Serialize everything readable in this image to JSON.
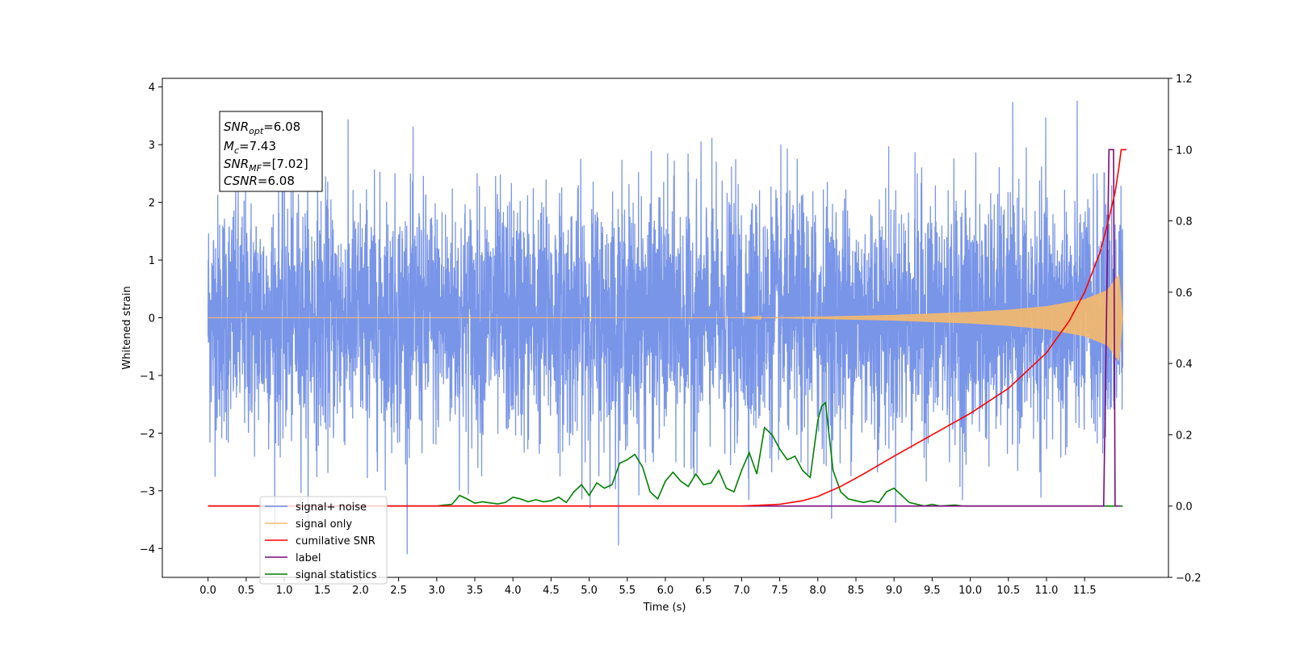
{
  "chart_data": {
    "type": "line",
    "xlabel": "Time (s)",
    "ylabel": "Whitened strain",
    "xlim": [
      -0.6,
      12.6
    ],
    "ylim": [
      -4.5,
      4.15
    ],
    "y2lim": [
      -0.2,
      1.2
    ],
    "x_ticks": [
      "0.0",
      "0.5",
      "1.0",
      "1.5",
      "2.0",
      "2.5",
      "3.0",
      "3.5",
      "4.0",
      "4.5",
      "5.0",
      "5.5",
      "6.0",
      "6.5",
      "7.0",
      "7.5",
      "8.0",
      "8.5",
      "9.0",
      "9.5",
      "10.0",
      "10.5",
      "11.0",
      "11.5"
    ],
    "y_ticks": [
      "−4",
      "−3",
      "−2",
      "−1",
      "0",
      "1",
      "2",
      "3",
      "4"
    ],
    "y2_ticks": [
      "−0.2",
      "0.0",
      "0.2",
      "0.4",
      "0.6",
      "0.8",
      "1.0",
      "1.2"
    ],
    "grid": false,
    "legend_position": "lower-left",
    "annotation": {
      "snr_opt": "6.08",
      "mc": "7.43",
      "snr_mf": "[7.02]",
      "csnr": "6.08"
    },
    "series": [
      {
        "name": "signal+ noise",
        "axis": "left",
        "color": "#6a8ae6",
        "description": "whitened noisy strain, approx. Gaussian with sigma ~1, range -4.1 to 3.8",
        "start": 0.0,
        "end": 12.0
      },
      {
        "name": "signal only",
        "axis": "left",
        "color": "#f5b96b",
        "envelope": [
          [
            0.0,
            0.0
          ],
          [
            7.0,
            0.0
          ],
          [
            8.0,
            0.02
          ],
          [
            9.0,
            0.05
          ],
          [
            10.0,
            0.1
          ],
          [
            10.5,
            0.14
          ],
          [
            11.0,
            0.2
          ],
          [
            11.5,
            0.32
          ],
          [
            11.8,
            0.48
          ],
          [
            11.95,
            0.75
          ],
          [
            12.0,
            0.0
          ]
        ]
      },
      {
        "name": "cumilative SNR",
        "axis": "right",
        "color": "#ff0000",
        "points": [
          [
            0.0,
            0.0
          ],
          [
            7.0,
            0.0
          ],
          [
            7.5,
            0.005
          ],
          [
            7.8,
            0.015
          ],
          [
            8.0,
            0.027
          ],
          [
            8.3,
            0.055
          ],
          [
            8.6,
            0.09
          ],
          [
            9.0,
            0.14
          ],
          [
            9.5,
            0.2
          ],
          [
            10.0,
            0.26
          ],
          [
            10.5,
            0.33
          ],
          [
            11.0,
            0.43
          ],
          [
            11.3,
            0.52
          ],
          [
            11.5,
            0.6
          ],
          [
            11.7,
            0.71
          ],
          [
            11.8,
            0.79
          ],
          [
            11.9,
            0.88
          ],
          [
            11.95,
            0.95
          ],
          [
            11.98,
            1.0
          ],
          [
            12.05,
            1.0
          ]
        ]
      },
      {
        "name": "label",
        "axis": "right",
        "color": "#7b0a7b",
        "points": [
          [
            0.0,
            0.0
          ],
          [
            11.75,
            0.0
          ],
          [
            11.82,
            1.0
          ],
          [
            11.88,
            1.0
          ],
          [
            11.9,
            0.0
          ],
          [
            11.95,
            0.0
          ],
          [
            11.96,
            0.0
          ]
        ]
      },
      {
        "name": "signal statistics",
        "axis": "right",
        "color": "#008000",
        "points": [
          [
            0.0,
            0.0
          ],
          [
            3.0,
            0.0
          ],
          [
            3.1,
            0.003
          ],
          [
            3.2,
            0.005
          ],
          [
            3.3,
            0.03
          ],
          [
            3.4,
            0.02
          ],
          [
            3.5,
            0.008
          ],
          [
            3.6,
            0.012
          ],
          [
            3.8,
            0.006
          ],
          [
            3.9,
            0.01
          ],
          [
            4.0,
            0.025
          ],
          [
            4.1,
            0.02
          ],
          [
            4.2,
            0.012
          ],
          [
            4.3,
            0.018
          ],
          [
            4.4,
            0.012
          ],
          [
            4.5,
            0.015
          ],
          [
            4.6,
            0.025
          ],
          [
            4.7,
            0.01
          ],
          [
            4.8,
            0.04
          ],
          [
            4.9,
            0.06
          ],
          [
            5.0,
            0.03
          ],
          [
            5.1,
            0.065
          ],
          [
            5.2,
            0.05
          ],
          [
            5.3,
            0.06
          ],
          [
            5.4,
            0.12
          ],
          [
            5.5,
            0.13
          ],
          [
            5.6,
            0.145
          ],
          [
            5.7,
            0.11
          ],
          [
            5.8,
            0.04
          ],
          [
            5.9,
            0.02
          ],
          [
            6.0,
            0.07
          ],
          [
            6.1,
            0.095
          ],
          [
            6.2,
            0.07
          ],
          [
            6.3,
            0.055
          ],
          [
            6.4,
            0.09
          ],
          [
            6.5,
            0.06
          ],
          [
            6.6,
            0.065
          ],
          [
            6.7,
            0.1
          ],
          [
            6.8,
            0.05
          ],
          [
            6.9,
            0.04
          ],
          [
            7.0,
            0.1
          ],
          [
            7.1,
            0.15
          ],
          [
            7.2,
            0.09
          ],
          [
            7.3,
            0.22
          ],
          [
            7.4,
            0.2
          ],
          [
            7.5,
            0.16
          ],
          [
            7.6,
            0.13
          ],
          [
            7.7,
            0.14
          ],
          [
            7.8,
            0.1
          ],
          [
            7.9,
            0.08
          ],
          [
            8.0,
            0.24
          ],
          [
            8.05,
            0.28
          ],
          [
            8.1,
            0.29
          ],
          [
            8.2,
            0.1
          ],
          [
            8.3,
            0.04
          ],
          [
            8.4,
            0.02
          ],
          [
            8.5,
            0.015
          ],
          [
            8.6,
            0.01
          ],
          [
            8.7,
            0.015
          ],
          [
            8.8,
            0.01
          ],
          [
            8.9,
            0.04
          ],
          [
            9.0,
            0.05
          ],
          [
            9.1,
            0.03
          ],
          [
            9.2,
            0.01
          ],
          [
            9.3,
            0.005
          ],
          [
            9.4,
            0.0
          ],
          [
            9.5,
            0.005
          ],
          [
            9.6,
            0.0
          ],
          [
            9.8,
            0.003
          ],
          [
            9.9,
            0.0
          ],
          [
            10.0,
            0.0
          ],
          [
            12.0,
            0.0
          ]
        ]
      }
    ]
  }
}
